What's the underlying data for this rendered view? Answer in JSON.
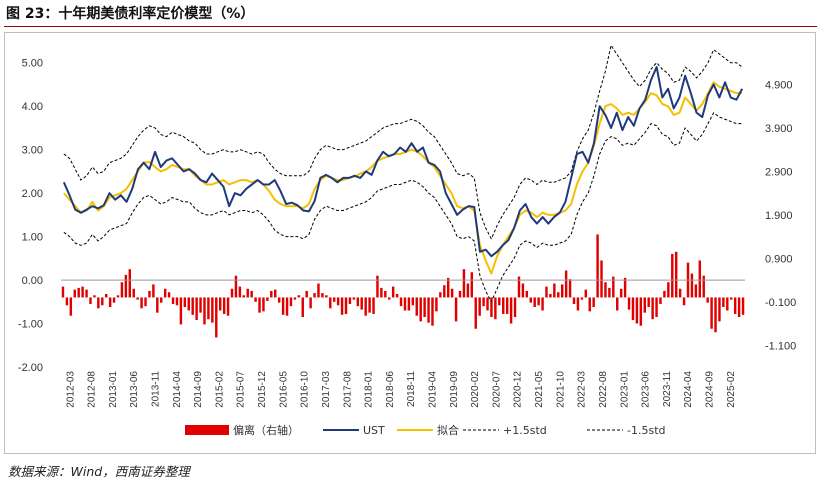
{
  "header": {
    "title": "图 23：十年期美债利率定价模型（%）",
    "source": "数据来源：Wind，西南证券整理"
  },
  "chart_data": {
    "type": "line",
    "title": "图 23：十年期美债利率定价模型（%）",
    "y_left": {
      "lim": [
        -2.0,
        5.5
      ],
      "ticks": [
        "5.00",
        "4.00",
        "3.00",
        "2.00",
        "1.00",
        "0.00",
        "-1.00",
        "-2.00"
      ],
      "tick_values": [
        5,
        4,
        3,
        2,
        1,
        0,
        -1,
        -2
      ]
    },
    "y_right": {
      "lim": [
        -1.6,
        5.9
      ],
      "ticks": [
        "4.900",
        "3.900",
        "2.900",
        "1.900",
        "0.900",
        "-0.100",
        "-1.100"
      ],
      "tick_values": [
        4.9,
        3.9,
        2.9,
        1.9,
        0.9,
        -0.1,
        -1.1
      ]
    },
    "x_ticks": [
      "2012-03",
      "2012-08",
      "2013-01",
      "2013-06",
      "2013-11",
      "2014-04",
      "2014-09",
      "2015-02",
      "2015-07",
      "2015-12",
      "2016-05",
      "2016-10",
      "2017-03",
      "2017-08",
      "2018-01",
      "2018-06",
      "2018-11",
      "2019-04",
      "2019-09",
      "2020-02",
      "2020-07",
      "2020-12",
      "2021-05",
      "2021-10",
      "2022-03",
      "2022-08",
      "2023-01",
      "2023-06",
      "2023-11",
      "2024-04",
      "2024-09",
      "2025-02"
    ],
    "x_range": [
      "2012-03",
      "2025-05"
    ],
    "grid": false,
    "legend_position": "bottom",
    "series": [
      {
        "name": "偏离（右轴）",
        "kind": "bar",
        "axis": "right",
        "color": "#e00000",
        "values": [
          0.25,
          -0.18,
          -0.42,
          0.18,
          0.22,
          0.25,
          0.18,
          -0.15,
          0.05,
          -0.25,
          -0.18,
          0.08,
          -0.22,
          -0.12,
          0.05,
          0.35,
          0.52,
          0.65,
          0.2,
          -0.05,
          -0.25,
          -0.2,
          0.15,
          0.3,
          -0.35,
          -0.12,
          0.2,
          0.12,
          -0.15,
          -0.18,
          -0.62,
          -0.22,
          -0.3,
          -0.4,
          -0.52,
          -0.35,
          -0.62,
          -0.5,
          -0.58,
          -0.92,
          -0.3,
          -0.38,
          -0.42,
          0.2,
          0.5,
          0.25,
          0.05,
          0.2,
          0.15,
          -0.1,
          -0.35,
          -0.32,
          -0.08,
          0.15,
          0.18,
          -0.12,
          -0.4,
          -0.42,
          -0.2,
          -0.05,
          0.05,
          -0.45,
          0.15,
          -0.25,
          0.1,
          0.32,
          0.1,
          0.05,
          -0.25,
          -0.1,
          -0.18,
          -0.4,
          -0.38,
          -0.15,
          -0.05,
          -0.2,
          -0.28,
          -0.42,
          -0.35,
          -0.38,
          0.5,
          0.22,
          0.15,
          -0.05,
          0.25,
          0.08,
          -0.2,
          -0.3,
          -0.3,
          -0.18,
          -0.42,
          -0.55,
          -0.45,
          -0.58,
          -0.65,
          -0.32,
          0.12,
          0.28,
          0.45,
          0.2,
          -0.55,
          0.15,
          0.65,
          0.32,
          0.58,
          -0.72,
          -0.42,
          -0.2,
          -0.3,
          -0.45,
          -0.5,
          -0.18,
          -0.38,
          -0.38,
          -0.6,
          -0.45,
          0.48,
          0.32,
          0.15,
          -0.12,
          -0.22,
          -0.18,
          -0.3,
          0.25,
          0.08,
          0.32,
          0.12,
          0.3,
          0.62,
          0.42,
          -0.15,
          -0.3,
          -0.05,
          0.18,
          -0.32,
          -0.22,
          1.45,
          0.85,
          0.35,
          0.22,
          0.48,
          -0.3,
          0.2,
          0.45,
          -0.28,
          -0.52,
          -0.6,
          -0.65,
          -0.35,
          -0.22,
          -0.5,
          -0.45,
          -0.15,
          0.15,
          0.35,
          1.0,
          1.05,
          0.2,
          -0.18,
          0.8,
          0.55,
          0.3,
          0.85,
          0.5,
          -0.12,
          -0.72,
          -0.8,
          -0.55,
          -0.22,
          -0.3,
          -0.05,
          -0.38,
          -0.45,
          -0.4
        ]
      },
      {
        "name": "UST",
        "kind": "line",
        "axis": "left",
        "color": "#1f3a7a",
        "values": [
          2.25,
          1.95,
          1.62,
          1.55,
          1.62,
          1.7,
          1.65,
          1.72,
          2.0,
          1.85,
          1.95,
          1.8,
          2.1,
          2.55,
          2.7,
          2.55,
          2.95,
          2.6,
          2.75,
          2.8,
          2.65,
          2.5,
          2.55,
          2.45,
          2.3,
          2.25,
          2.45,
          2.3,
          2.15,
          1.7,
          2.0,
          1.95,
          2.1,
          2.2,
          2.3,
          2.2,
          2.2,
          2.3,
          2.05,
          1.75,
          1.78,
          1.72,
          1.6,
          1.58,
          1.82,
          2.35,
          2.42,
          2.35,
          2.25,
          2.35,
          2.35,
          2.4,
          2.35,
          2.5,
          2.42,
          2.75,
          2.95,
          2.85,
          2.9,
          3.05,
          2.95,
          3.15,
          2.95,
          3.05,
          2.7,
          2.65,
          2.5,
          2.0,
          1.75,
          1.5,
          1.62,
          1.7,
          1.68,
          0.65,
          0.7,
          0.55,
          0.65,
          0.8,
          0.92,
          1.2,
          1.6,
          1.75,
          1.45,
          1.3,
          1.45,
          1.3,
          1.45,
          1.55,
          1.8,
          2.35,
          2.9,
          2.95,
          2.7,
          3.15,
          4.0,
          3.8,
          3.5,
          3.85,
          3.45,
          3.75,
          3.55,
          3.95,
          4.15,
          4.6,
          4.9,
          4.2,
          4.4,
          3.95,
          4.2,
          4.7,
          4.3,
          3.85,
          3.75,
          4.25,
          4.5,
          4.2,
          4.55,
          4.2,
          4.15,
          4.4
        ]
      },
      {
        "name": "拟合",
        "kind": "line",
        "axis": "left",
        "color": "#f5c000",
        "values": [
          2.0,
          1.85,
          1.7,
          1.55,
          1.6,
          1.8,
          1.6,
          1.7,
          1.9,
          1.95,
          2.0,
          2.1,
          2.3,
          2.5,
          2.7,
          2.72,
          2.6,
          2.5,
          2.55,
          2.65,
          2.6,
          2.55,
          2.55,
          2.4,
          2.3,
          2.2,
          2.2,
          2.25,
          2.3,
          2.2,
          2.25,
          2.3,
          2.3,
          2.25,
          2.3,
          2.2,
          2.05,
          1.85,
          1.75,
          1.7,
          1.7,
          1.7,
          1.65,
          1.75,
          2.1,
          2.3,
          2.4,
          2.35,
          2.3,
          2.3,
          2.35,
          2.38,
          2.45,
          2.5,
          2.6,
          2.75,
          2.8,
          2.85,
          2.9,
          2.9,
          2.95,
          3.0,
          2.95,
          2.85,
          2.7,
          2.6,
          2.4,
          2.2,
          2.0,
          1.7,
          1.65,
          1.7,
          1.6,
          0.8,
          0.45,
          0.15,
          0.55,
          0.8,
          1.0,
          1.2,
          1.5,
          1.6,
          1.55,
          1.45,
          1.55,
          1.5,
          1.5,
          1.55,
          1.6,
          1.75,
          2.2,
          2.5,
          2.7,
          3.1,
          3.6,
          4.0,
          4.05,
          3.95,
          3.8,
          3.85,
          3.8,
          3.95,
          4.1,
          4.3,
          4.25,
          4.05,
          4.0,
          3.8,
          3.85,
          4.2,
          4.05,
          3.9,
          4.05,
          4.3,
          4.55,
          4.45,
          4.4,
          4.35,
          4.3,
          4.3
        ]
      },
      {
        "name": "+1.5std",
        "kind": "line",
        "axis": "left",
        "color": "#000000",
        "dash": true,
        "values": [
          2.9,
          2.8,
          2.55,
          2.3,
          2.4,
          2.6,
          2.45,
          2.5,
          2.7,
          2.75,
          2.8,
          2.9,
          3.1,
          3.3,
          3.45,
          3.55,
          3.5,
          3.35,
          3.3,
          3.4,
          3.35,
          3.3,
          3.2,
          3.15,
          3.0,
          2.9,
          2.9,
          2.95,
          3.0,
          2.95,
          2.95,
          3.0,
          2.95,
          2.9,
          2.95,
          2.9,
          2.7,
          2.55,
          2.45,
          2.4,
          2.4,
          2.4,
          2.4,
          2.5,
          2.8,
          3.0,
          3.1,
          3.05,
          3.0,
          3.0,
          3.05,
          3.1,
          3.15,
          3.2,
          3.3,
          3.4,
          3.5,
          3.55,
          3.6,
          3.6,
          3.65,
          3.7,
          3.65,
          3.55,
          3.4,
          3.3,
          3.1,
          2.9,
          2.7,
          2.45,
          2.4,
          2.45,
          2.35,
          1.55,
          1.2,
          0.95,
          1.25,
          1.5,
          1.7,
          1.9,
          2.2,
          2.35,
          2.3,
          2.2,
          2.3,
          2.25,
          2.25,
          2.3,
          2.35,
          2.5,
          2.95,
          3.25,
          3.45,
          3.85,
          4.35,
          4.8,
          5.4,
          5.2,
          5.0,
          4.8,
          4.6,
          4.45,
          4.6,
          4.85,
          5.0,
          4.85,
          4.75,
          4.55,
          4.6,
          4.9,
          4.8,
          4.65,
          4.8,
          5.0,
          5.3,
          5.2,
          5.1,
          5.0,
          5.0,
          4.9
        ]
      },
      {
        "name": "-1.5std",
        "kind": "line",
        "axis": "left",
        "color": "#000000",
        "dash": true,
        "values": [
          1.1,
          1.0,
          0.85,
          0.8,
          0.85,
          1.05,
          0.9,
          1.0,
          1.15,
          1.2,
          1.25,
          1.3,
          1.55,
          1.75,
          1.9,
          1.95,
          1.85,
          1.75,
          1.8,
          1.9,
          1.85,
          1.8,
          1.8,
          1.65,
          1.55,
          1.5,
          1.5,
          1.55,
          1.6,
          1.5,
          1.55,
          1.6,
          1.6,
          1.55,
          1.6,
          1.5,
          1.35,
          1.15,
          1.05,
          1.0,
          1.0,
          1.0,
          0.95,
          1.05,
          1.4,
          1.6,
          1.7,
          1.65,
          1.6,
          1.6,
          1.65,
          1.7,
          1.75,
          1.8,
          1.9,
          2.05,
          2.1,
          2.15,
          2.2,
          2.2,
          2.25,
          2.3,
          2.25,
          2.15,
          2.0,
          1.9,
          1.7,
          1.5,
          1.3,
          1.0,
          0.95,
          1.0,
          0.9,
          0.1,
          -0.25,
          -0.5,
          -0.2,
          0.1,
          0.3,
          0.5,
          0.8,
          0.9,
          0.85,
          0.75,
          0.85,
          0.8,
          0.8,
          0.85,
          0.9,
          1.05,
          1.5,
          1.8,
          2.0,
          2.4,
          2.9,
          3.2,
          3.3,
          3.25,
          3.1,
          3.15,
          3.1,
          3.25,
          3.4,
          3.6,
          3.55,
          3.35,
          3.3,
          3.1,
          3.15,
          3.5,
          3.35,
          3.2,
          3.35,
          3.6,
          3.85,
          3.75,
          3.7,
          3.65,
          3.6,
          3.6
        ]
      }
    ]
  },
  "colors": {
    "accent": "#9a0000"
  }
}
